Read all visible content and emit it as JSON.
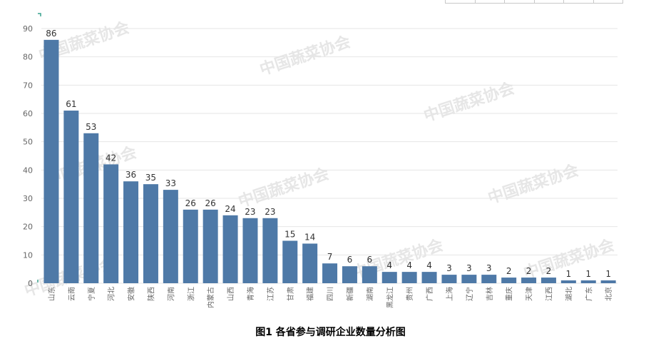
{
  "caption": "图1 各省参与调研企业数量分析图",
  "watermark": "中国蔬菜协会",
  "colors": {
    "bar": "#4e79a7",
    "grid": "#e6e6e6",
    "axis_text": "#666666",
    "label_text": "#333333",
    "watermark": "#c9c9c9"
  },
  "chart_data": {
    "type": "bar",
    "title": "",
    "xlabel": "",
    "ylabel": "",
    "ylim": [
      0,
      90
    ],
    "yticks": [
      0,
      10,
      20,
      30,
      40,
      50,
      60,
      70,
      80,
      90
    ],
    "grid": true,
    "categories": [
      "山东",
      "云南",
      "宁夏",
      "河北",
      "安徽",
      "陕西",
      "河南",
      "浙江",
      "内蒙古",
      "山西",
      "青海",
      "江苏",
      "甘肃",
      "福建",
      "四川",
      "新疆",
      "湖南",
      "黑龙江",
      "贵州",
      "广西",
      "上海",
      "辽宁",
      "吉林",
      "重庆",
      "天津",
      "江西",
      "湖北",
      "广东",
      "北京"
    ],
    "values": [
      86,
      61,
      53,
      42,
      36,
      35,
      33,
      26,
      26,
      24,
      23,
      23,
      15,
      14,
      7,
      6,
      6,
      4,
      4,
      4,
      3,
      3,
      3,
      2,
      2,
      2,
      1,
      1,
      1
    ]
  }
}
